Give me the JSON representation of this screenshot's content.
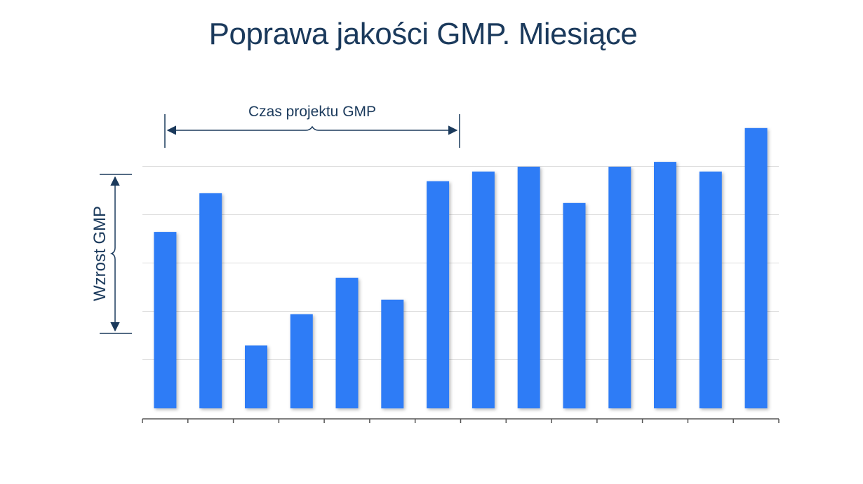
{
  "chart_data": {
    "type": "bar",
    "title": "Poprawa jakości GMP. Miesiące",
    "categories": [
      "",
      "",
      "",
      "",
      "",
      "",
      "",
      "",
      "",
      "",
      "",
      "",
      "",
      ""
    ],
    "values": [
      3.65,
      4.45,
      1.3,
      1.95,
      2.7,
      2.25,
      4.7,
      4.9,
      5.0,
      4.25,
      5.0,
      5.1,
      4.9,
      5.8
    ],
    "ylim": [
      0,
      6
    ],
    "grid": true,
    "bar_color": "#2d7cf6",
    "annotations": {
      "project_time_label": "Czas projektu GMP",
      "growth_label": "Wzrost GMP"
    }
  }
}
